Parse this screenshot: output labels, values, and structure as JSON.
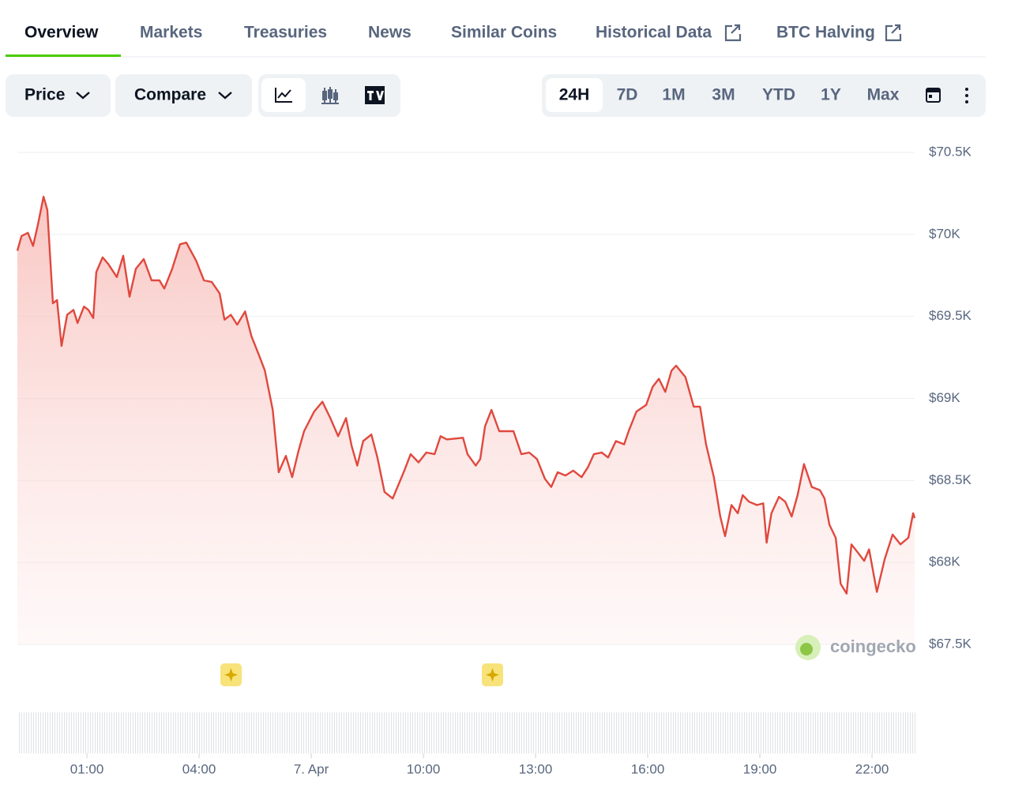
{
  "tabs": [
    "Overview",
    "Markets",
    "Treasuries",
    "News",
    "Similar Coins",
    "Historical Data",
    "BTC Halving"
  ],
  "controls": {
    "selectors": [
      "Price",
      "Compare"
    ],
    "ranges": [
      "24H",
      "7D",
      "1M",
      "3M",
      "YTD",
      "1Y",
      "Max"
    ]
  },
  "watermark": "coingecko",
  "chart_data": {
    "type": "area",
    "x": [
      -0.86,
      -0.75,
      -0.58,
      -0.44,
      -0.31,
      -0.16,
      -0.06,
      0.09,
      0.2,
      0.32,
      0.47,
      0.64,
      0.75,
      0.92,
      1.04,
      1.17,
      1.25,
      1.42,
      1.57,
      1.8,
      1.97,
      2.14,
      2.31,
      2.52,
      2.73,
      2.94,
      3.07,
      3.28,
      3.49,
      3.66,
      3.92,
      4.13,
      4.34,
      4.55,
      4.68,
      4.85,
      5.02,
      5.23,
      5.4,
      5.61,
      5.76,
      5.97,
      6.13,
      6.32,
      6.49,
      6.66,
      6.81,
      7.08,
      7.3,
      7.51,
      7.72,
      7.93,
      8.08,
      8.23,
      8.39,
      8.61,
      8.77,
      8.96,
      9.18,
      9.49,
      9.66,
      9.87,
      10.08,
      10.3,
      10.46,
      10.63,
      11.06,
      11.18,
      11.4,
      11.52,
      11.65,
      11.82,
      12.03,
      12.41,
      12.62,
      12.83,
      13.04,
      13.25,
      13.42,
      13.59,
      13.8,
      14.01,
      14.23,
      14.4,
      14.56,
      14.77,
      14.94,
      15.15,
      15.37,
      15.49,
      15.7,
      15.96,
      16.13,
      16.3,
      16.47,
      16.64,
      16.76,
      17.01,
      17.23,
      17.4,
      17.56,
      17.77,
      17.94,
      18.07,
      18.24,
      18.41,
      18.54,
      18.71,
      18.92,
      19.09,
      19.18,
      19.31,
      19.51,
      19.68,
      19.85,
      20.01,
      20.18,
      20.39,
      20.61,
      20.73,
      20.86,
      21.03,
      21.16,
      21.32,
      21.45,
      21.62,
      21.79,
      21.92,
      22.13,
      22.34,
      22.55,
      22.76,
      22.97,
      23.1,
      23.14
    ],
    "series": [
      {
        "color": "#e0483e",
        "values": [
          69900,
          69990,
          70010,
          69930,
          70060,
          70230,
          70150,
          69580,
          69600,
          69320,
          69510,
          69540,
          69460,
          69560,
          69540,
          69490,
          69770,
          69860,
          69820,
          69740,
          69870,
          69620,
          69790,
          69850,
          69720,
          69720,
          69670,
          69790,
          69940,
          69950,
          69840,
          69720,
          69710,
          69640,
          69480,
          69510,
          69450,
          69530,
          69380,
          69260,
          69170,
          68930,
          68550,
          68650,
          68520,
          68680,
          68800,
          68920,
          68980,
          68880,
          68770,
          68880,
          68710,
          68590,
          68740,
          68780,
          68640,
          68430,
          68390,
          68560,
          68660,
          68610,
          68670,
          68660,
          68770,
          68750,
          68760,
          68660,
          68590,
          68630,
          68830,
          68930,
          68800,
          68800,
          68660,
          68670,
          68630,
          68510,
          68460,
          68550,
          68530,
          68560,
          68520,
          68580,
          68660,
          68670,
          68640,
          68740,
          68720,
          68800,
          68920,
          68960,
          69070,
          69120,
          69040,
          69170,
          69200,
          69130,
          68950,
          68950,
          68720,
          68520,
          68280,
          68160,
          68350,
          68300,
          68410,
          68370,
          68350,
          68360,
          68120,
          68300,
          68400,
          68370,
          68280,
          68410,
          68600,
          68460,
          68440,
          68390,
          68230,
          68150,
          67870,
          67810,
          68110,
          68060,
          68010,
          68080,
          67820,
          68020,
          68170,
          68110,
          68150,
          68300,
          68270
        ]
      }
    ],
    "xlim": [
      -0.86,
      23.14
    ],
    "xticks": [
      {
        "value": 1,
        "label": "01:00"
      },
      {
        "value": 4,
        "label": "04:00"
      },
      {
        "value": 7,
        "label": "7. Apr"
      },
      {
        "value": 10,
        "label": "10:00"
      },
      {
        "value": 13,
        "label": "13:00"
      },
      {
        "value": 16,
        "label": "16:00"
      },
      {
        "value": 19,
        "label": "19:00"
      },
      {
        "value": 22,
        "label": "22:00"
      }
    ],
    "ylim": [
      67500,
      70500
    ],
    "yticks": [
      {
        "value": 67500,
        "label": "$67.5K"
      },
      {
        "value": 68000,
        "label": "$68K"
      },
      {
        "value": 68500,
        "label": "$68.5K"
      },
      {
        "value": 69000,
        "label": "$69K"
      },
      {
        "value": 69500,
        "label": "$69.5K"
      },
      {
        "value": 70000,
        "label": "$70K"
      },
      {
        "value": 70500,
        "label": "$70.5K"
      }
    ],
    "grid": true
  }
}
